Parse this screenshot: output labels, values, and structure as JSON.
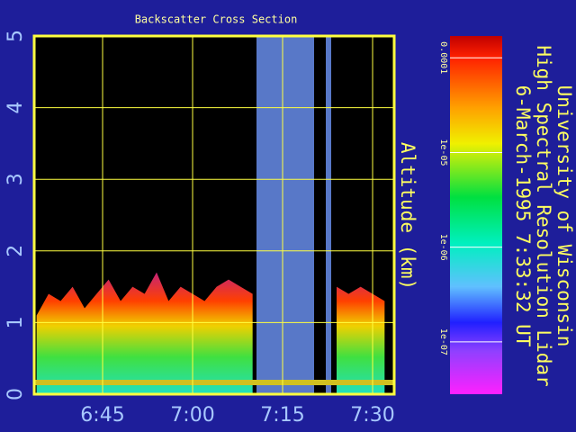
{
  "chart_data": {
    "type": "area",
    "title": "Backscatter Cross Section",
    "ylabel": "Altitude (km)",
    "info": [
      "University of Wisconsin",
      "High Spectral Resolution Lidar",
      "6-March-1995   7:33:32 UT"
    ],
    "x": [
      394,
      396,
      398,
      400,
      402,
      404,
      406,
      408,
      410,
      412,
      414,
      416,
      418,
      420,
      422,
      424,
      426,
      428,
      430,
      432,
      434,
      436,
      438,
      440,
      442,
      444,
      446,
      448,
      450,
      452
    ],
    "values": [
      1.1,
      1.4,
      1.3,
      1.5,
      1.2,
      1.4,
      1.6,
      1.3,
      1.5,
      1.4,
      1.7,
      1.3,
      1.5,
      1.4,
      1.3,
      1.5,
      1.6,
      1.5,
      1.4,
      null,
      null,
      null,
      null,
      null,
      null,
      1.5,
      1.4,
      1.5,
      1.4,
      1.3
    ],
    "no_data": [
      [
        430.65,
        440.25
      ],
      [
        442.2,
        443.1
      ]
    ],
    "xlim": [
      393.6,
      453.6
    ],
    "xticks": [
      {
        "value": 405,
        "label": "6:45"
      },
      {
        "value": 420,
        "label": "7:00"
      },
      {
        "value": 435,
        "label": "7:15"
      },
      {
        "value": 450,
        "label": "7:30"
      }
    ],
    "ylim": [
      0,
      5
    ],
    "yticks": [
      0,
      1,
      2,
      3,
      4,
      5
    ],
    "grid": true,
    "colorbar": {
      "log": true,
      "clim": [
        2.8e-08,
        0.00017
      ],
      "ticks": [
        {
          "value": 0.0001,
          "label": "0.0001"
        },
        {
          "value": 1e-05,
          "label": "1e-05"
        },
        {
          "value": 1e-06,
          "label": "1e-06"
        },
        {
          "value": 1e-07,
          "label": "1e-07"
        }
      ]
    }
  }
}
